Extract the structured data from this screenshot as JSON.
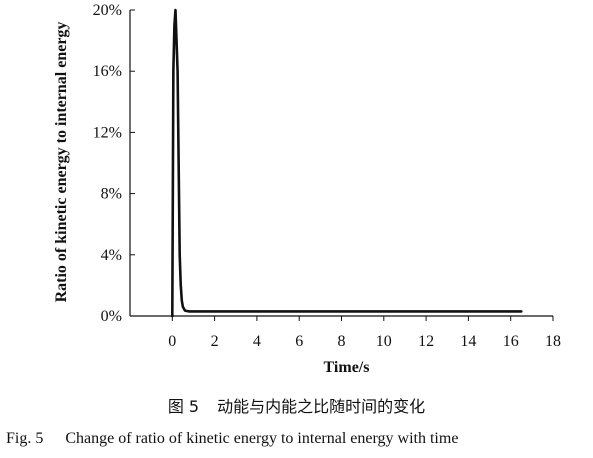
{
  "chart_data": {
    "type": "line",
    "xlabel": "Time/s",
    "ylabel": "Ratio of kinetic energy to internal energy",
    "xlim": [
      -2,
      18
    ],
    "ylim": [
      0,
      20
    ],
    "x_ticks": [
      0,
      2,
      4,
      6,
      8,
      10,
      12,
      14,
      16,
      18
    ],
    "x_tick_labels": [
      "0",
      "2",
      "4",
      "6",
      "8",
      "10",
      "12",
      "14",
      "16",
      "18"
    ],
    "y_ticks": [
      0,
      4,
      8,
      12,
      16,
      20
    ],
    "y_tick_labels": [
      "0%",
      "4%",
      "8%",
      "12%",
      "16%",
      "20%"
    ],
    "y_unit": "%",
    "grid": false,
    "legend": "none",
    "line_color": "#111111",
    "series": [
      {
        "x": [
          0,
          0.05,
          0.1,
          0.15,
          0.2,
          0.25,
          0.3,
          0.35,
          0.4,
          0.45,
          0.5,
          0.6,
          0.8,
          1.0,
          2,
          4,
          6,
          8,
          10,
          12,
          14,
          16,
          16.5
        ],
        "y": [
          0,
          16,
          19,
          20,
          18,
          16,
          10,
          4,
          2,
          1,
          0.6,
          0.35,
          0.3,
          0.3,
          0.3,
          0.3,
          0.3,
          0.3,
          0.3,
          0.3,
          0.3,
          0.3,
          0.3
        ]
      }
    ]
  },
  "caption": {
    "zh_fig": "图 5",
    "zh_text": "动能与内能之比随时间的变化",
    "en_fig": "Fig. 5",
    "en_text": "Change of ratio of kinetic energy to internal energy with time"
  }
}
